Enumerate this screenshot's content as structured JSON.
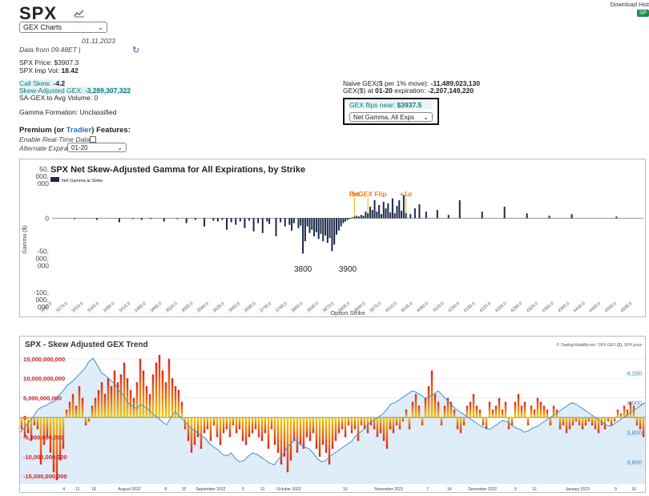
{
  "header": {
    "ticker": "SPX",
    "chart_select": "GEX Charts",
    "date": "01.11.2023",
    "data_from": "Data from 09:48ET |",
    "download": "Download Hist",
    "download_btn": "SP"
  },
  "stats": {
    "price_label": "SPX Price: $3907.3",
    "impvol_prefix": "SPX Imp Vol: ",
    "impvol_value": "18.42",
    "callskew_prefix": "Call Skew: ",
    "callskew_value": "-4.2",
    "sagex_prefix": "Skew-Adjusted GEX: ",
    "sagex_value": "-3,289,307,322",
    "sagex_avg": "SA-GEX to Avg Volume: 0",
    "gamma_formation": "Gamma Formation: Unclassified",
    "naive_prefix": "Naive GEX($ per 1% move): ",
    "naive_value": "-11,489,023,130",
    "gex_prefix": "GEX($) at ",
    "gex_exp": "01-20",
    "gex_mid": " expiration: ",
    "gex_value": "-2,207,149,220",
    "flips_prefix": "GEX flips near: ",
    "flips_value": "$3937.5",
    "gamma_select": "Net Gamma, All Exps"
  },
  "premium": {
    "title_a": "Premium (or ",
    "title_link": "Tradier",
    "title_b": ") Features:",
    "realtime": "Enable Real-Time Data",
    "alt_exp": "Alternate Expiration",
    "alt_exp_value": "01-20"
  },
  "chart_data": [
    {
      "type": "bar",
      "title": "SPX Net Skew-Adjusted Gamma for All Expirations, by Strike",
      "legend": "Net Gamma at Strike",
      "xlabel": "Option Strike",
      "ylabel": "Gamma ($)",
      "y_ticks": [
        "50,\n000,\n000",
        "0",
        "-50,\n000,\n000",
        "-100,\n000,\n000"
      ],
      "ylim": [
        -100000000,
        50000000
      ],
      "strike_min": 3240,
      "strike_max": 4560,
      "tick_strikes": [
        3240,
        3275,
        3310,
        3345,
        3380,
        3415,
        3450,
        3485,
        3520,
        3555,
        3590,
        3625,
        3660,
        3695,
        3730,
        3765,
        3800,
        3835,
        3870,
        3905,
        3940,
        3975,
        4010,
        4045,
        4080,
        4115,
        4150,
        4185,
        4220,
        4255,
        4290,
        4325,
        4360,
        4395,
        4430,
        4465,
        4500,
        4535
      ],
      "strikes": [
        3290,
        3340,
        3390,
        3420,
        3440,
        3460,
        3490,
        3520,
        3540,
        3560,
        3580,
        3600,
        3610,
        3620,
        3630,
        3640,
        3650,
        3660,
        3670,
        3680,
        3690,
        3700,
        3710,
        3720,
        3725,
        3740,
        3750,
        3760,
        3770,
        3775,
        3780,
        3790,
        3795,
        3800,
        3805,
        3810,
        3815,
        3820,
        3825,
        3830,
        3835,
        3840,
        3845,
        3850,
        3855,
        3860,
        3865,
        3870,
        3875,
        3880,
        3885,
        3890,
        3895,
        3900,
        3905,
        3910,
        3915,
        3920,
        3925,
        3930,
        3935,
        3940,
        3945,
        3950,
        3955,
        3960,
        3965,
        3970,
        3975,
        3980,
        3985,
        3990,
        3995,
        4000,
        4005,
        4010,
        4015,
        4020,
        4025,
        4030,
        4040,
        4050,
        4060,
        4075,
        4100,
        4125,
        4150,
        4200,
        4250,
        4300,
        4350,
        4400,
        4500
      ],
      "values": [
        -1,
        -2,
        -5,
        -1,
        -2,
        -1,
        -4,
        -1,
        -6,
        -2,
        -10,
        -3,
        -4,
        -2,
        -14,
        -5,
        -8,
        -4,
        -12,
        -3,
        -16,
        -6,
        -18,
        -4,
        -7,
        -22,
        -5,
        -10,
        -8,
        -15,
        -6,
        -12,
        -9,
        -43,
        -28,
        -10,
        -18,
        -14,
        -22,
        -17,
        -25,
        -19,
        -28,
        -21,
        -30,
        -24,
        -40,
        -32,
        -20,
        -15,
        -10,
        -6,
        -4,
        -2,
        -1,
        1,
        2,
        3,
        2,
        4,
        3,
        8,
        6,
        14,
        10,
        22,
        8,
        16,
        5,
        20,
        12,
        18,
        7,
        24,
        6,
        15,
        22,
        9,
        28,
        6,
        5,
        12,
        17,
        8,
        10,
        4,
        22,
        8,
        14,
        6,
        3,
        5,
        2
      ],
      "markers": [
        {
          "label": "-1σ",
          "strike": 3915
        },
        {
          "label": "PriGEX Flip",
          "strike": 3945
        },
        {
          "label": "+1σ",
          "strike": 4030
        }
      ],
      "annotations": [
        {
          "label": "3800",
          "strike": 3800
        },
        {
          "label": "3900",
          "strike": 3900
        }
      ]
    },
    {
      "type": "bar",
      "title": "SPX - Skew Adjusted GEX Trend",
      "credit": "© TradingVolatility.net / SPX GEX ($), SPX price",
      "y_left_ticks": [
        "15,000,000,000",
        "10,000,000,000",
        "5,000,000,000",
        "0",
        "-5,000,000,000",
        "-10,000,000,000",
        "-15,000,000,000"
      ],
      "y_left_range": [
        -17000000000,
        17000000000
      ],
      "y_right_ticks": [
        "4,200",
        "4,000",
        "3,800",
        "3,600"
      ],
      "y_right_range": [
        3450,
        4350
      ],
      "x_labels": [
        "4",
        "11",
        "18",
        "August 2022",
        "8",
        "15",
        "September 2022",
        "5",
        "12",
        "October 2022",
        "10",
        "November 2022",
        "7",
        "14",
        "December 2022",
        "5",
        "12",
        "January 2023",
        "9",
        "16"
      ],
      "gex_values": [
        -3,
        -5,
        -4,
        -6,
        -2,
        -3,
        -12,
        -7,
        -5,
        -9,
        -14,
        -16,
        -11,
        -8,
        2,
        4,
        6,
        3,
        8,
        5,
        -2,
        -1,
        3,
        5,
        7,
        9,
        6,
        10,
        8,
        12,
        9,
        11,
        14,
        10,
        7,
        5,
        9,
        15,
        12,
        8,
        6,
        11,
        14,
        16,
        12,
        9,
        15,
        10,
        8,
        7,
        4,
        -3,
        -6,
        -9,
        -7,
        -5,
        -8,
        -4,
        -3,
        -6,
        -2,
        -5,
        -7,
        -4,
        -3,
        -5,
        -2,
        -4,
        -3,
        -6,
        -7,
        -5,
        -4,
        -3,
        -5,
        -6,
        -4,
        -8,
        -3,
        -7,
        -9,
        -12,
        -10,
        -14,
        -11,
        -6,
        -9,
        -7,
        -8,
        -5,
        -6,
        -4,
        -8,
        -10,
        -7,
        -9,
        -12,
        -8,
        -6,
        -4,
        -3,
        -5,
        -2,
        -4,
        -3,
        -6,
        -2,
        -3,
        -4,
        -2,
        -3,
        -5,
        -4,
        -6,
        -8,
        -3,
        -4,
        -2,
        -3,
        -1,
        2,
        -3,
        4,
        6,
        3,
        -2,
        5,
        8,
        12,
        6,
        4,
        -2,
        3,
        5,
        4,
        2,
        -3,
        -4,
        -2,
        3,
        4,
        6,
        3,
        2,
        -2,
        -3,
        4,
        2,
        3,
        5,
        2,
        4,
        -3,
        -2,
        4,
        6,
        3,
        4,
        -2,
        3,
        2,
        5,
        4,
        3,
        2,
        -2,
        3,
        2,
        -3,
        -2,
        -4,
        -3,
        -2,
        -1,
        -2,
        -3,
        -2,
        -1,
        -2,
        -3,
        -4,
        -2,
        -3,
        -1,
        -2,
        -1,
        2,
        1,
        3,
        2,
        4,
        3,
        -2,
        -3,
        -5
      ],
      "price_values": [
        3800,
        3830,
        3870,
        3900,
        3950,
        3970,
        3980,
        4000,
        4010,
        4050,
        4080,
        4120,
        4140,
        4170,
        4200,
        4230,
        4280,
        4300,
        4250,
        4200,
        4180,
        4150,
        4130,
        4080,
        4050,
        4000,
        3980,
        3960,
        3990,
        3970,
        3950,
        3920,
        3900,
        3870,
        3850,
        3900,
        3940,
        3910,
        3880,
        3850,
        3820,
        3800,
        3780,
        3760,
        3720,
        3700,
        3680,
        3650,
        3640,
        3660,
        3620,
        3600,
        3610,
        3640,
        3660,
        3650,
        3630,
        3610,
        3590,
        3580,
        3620,
        3650,
        3700,
        3730,
        3750,
        3720,
        3700,
        3690,
        3660,
        3620,
        3600,
        3610,
        3640,
        3660,
        3680,
        3700,
        3720,
        3740,
        3780,
        3800,
        3830,
        3860,
        3880,
        3900,
        3920,
        3950,
        3990,
        4000,
        4020,
        4040,
        4060,
        4080,
        4070,
        4050,
        4030,
        4040,
        4060,
        4080,
        4050,
        4020,
        3990,
        3960,
        3940,
        3920,
        3900,
        3880,
        3860,
        3840,
        3830,
        3820,
        3840,
        3860,
        3880,
        3870,
        3850,
        3830,
        3820,
        3800,
        3810,
        3830,
        3840,
        3860,
        3880,
        3900,
        3920,
        3940,
        3960,
        3980,
        4000,
        3990,
        3970,
        3950,
        3930,
        3910,
        3890,
        3870,
        3850,
        3840,
        3860,
        3880,
        3900,
        3920,
        3940,
        3960,
        3980,
        4000
      ]
    }
  ]
}
